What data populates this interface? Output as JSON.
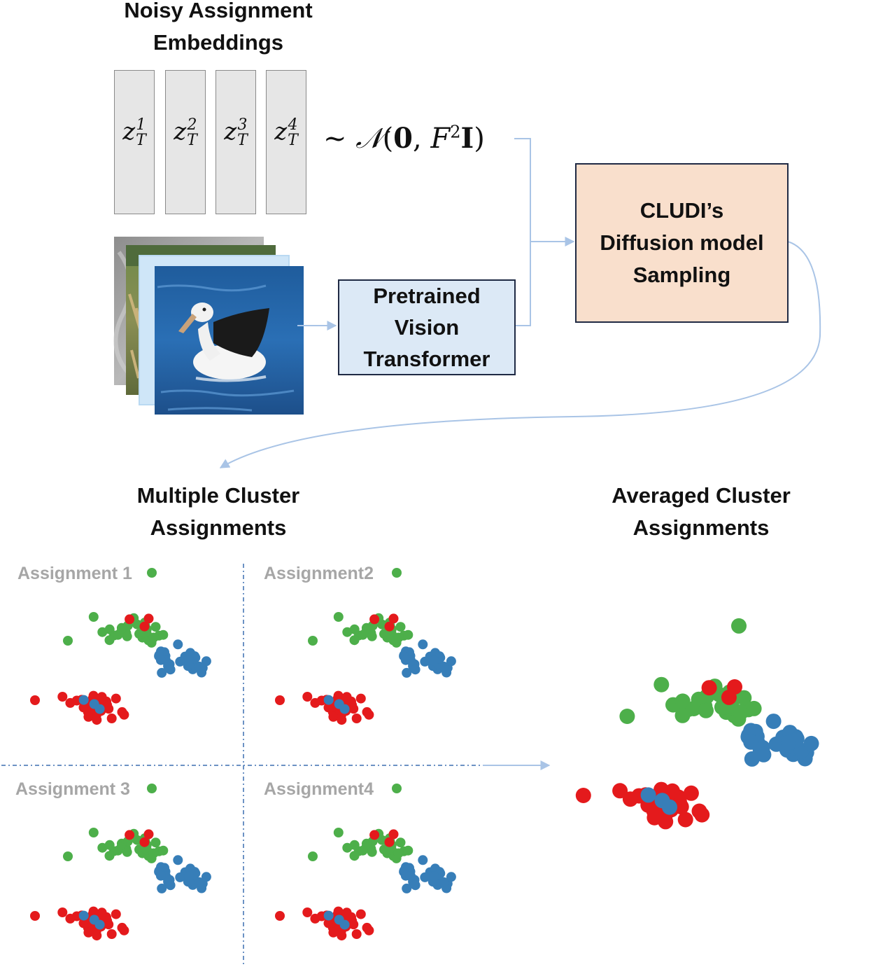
{
  "titles": {
    "noisy": [
      "Noisy Assignment",
      "Embeddings"
    ],
    "multiple": [
      "Multiple Cluster",
      "Assignments"
    ],
    "averaged": [
      "Averaged Cluster",
      "Assignments"
    ]
  },
  "embeddings": [
    {
      "base": "z",
      "sup": "1",
      "sub": "T"
    },
    {
      "base": "z",
      "sup": "2",
      "sub": "T"
    },
    {
      "base": "z",
      "sup": "3",
      "sub": "T"
    },
    {
      "base": "z",
      "sup": "4",
      "sub": "T"
    }
  ],
  "formula": {
    "tilde": "~",
    "dist": "𝒩",
    "open": "(",
    "zero": "0",
    "comma": ",",
    "f": "F",
    "power": "2",
    "identity": "I",
    "close": ")"
  },
  "vit_box": {
    "lines": [
      "Pretrained",
      "Vision",
      "Transformer"
    ]
  },
  "cludi_box": {
    "lines": [
      "CLUDI’s",
      "Diffusion model",
      "Sampling"
    ]
  },
  "assignment_labels": [
    "Assignment 1",
    "Assignment2",
    "Assignment 3",
    "Assignment4"
  ],
  "colors": {
    "cluster_green": "#4daf4a",
    "cluster_blue": "#377eb8",
    "cluster_red": "#e41a1c",
    "arrow": "#a9c4e6",
    "vit_fill": "#dce9f6",
    "cludi_fill": "#f9dfcc",
    "box_border": "#1f2a44",
    "assignment_label": "#a6a6a6",
    "embedding_fill": "#e6e6e6"
  },
  "images": [
    "grassland-photo",
    "grey-texture-photo",
    "albatross-on-water-photo"
  ]
}
